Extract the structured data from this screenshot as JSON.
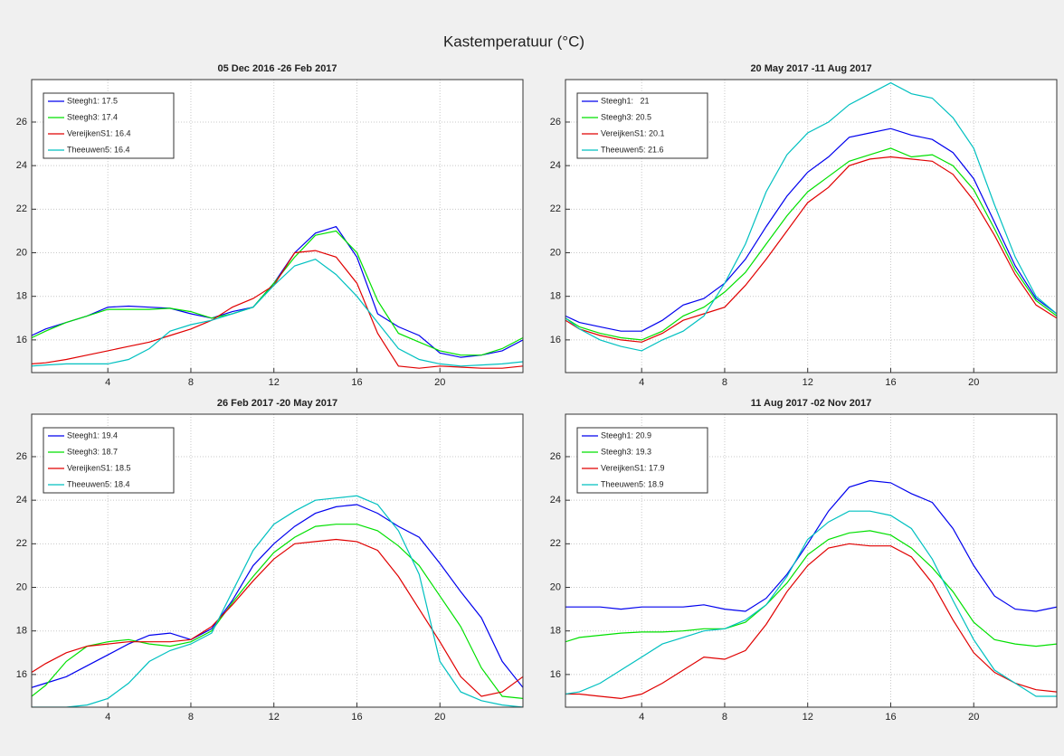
{
  "title": "Kastemperatuur (°C)",
  "chart_data": [
    {
      "type": "line",
      "title": "05 Dec 2016 -26 Feb 2017",
      "x": [
        0.33,
        1,
        2,
        3,
        4,
        5,
        6,
        7,
        8,
        9,
        10,
        11,
        12,
        13,
        14,
        15,
        16,
        17,
        18,
        19,
        20,
        21,
        22,
        23,
        24
      ],
      "xlim": [
        0.33,
        24
      ],
      "xticks": [
        4,
        8,
        12,
        16,
        20
      ],
      "ylim": [
        14.5,
        27.95
      ],
      "yticks": [
        16,
        18,
        20,
        22,
        24,
        26
      ],
      "grid": true,
      "legend": "upper left",
      "series": [
        {
          "name": "Steegh1: 17.5",
          "color": "#0000ee",
          "values": [
            16.2,
            16.5,
            16.8,
            17.1,
            17.5,
            17.55,
            17.5,
            17.45,
            17.2,
            17.0,
            17.3,
            17.5,
            18.6,
            20.0,
            20.9,
            21.2,
            19.8,
            17.2,
            16.6,
            16.2,
            15.4,
            15.2,
            15.3,
            15.5,
            16.0
          ]
        },
        {
          "name": "Steegh3: 17.4",
          "color": "#00e000",
          "values": [
            16.1,
            16.4,
            16.8,
            17.1,
            17.4,
            17.4,
            17.4,
            17.45,
            17.3,
            17.0,
            17.2,
            17.5,
            18.6,
            19.8,
            20.8,
            21.0,
            20.0,
            17.8,
            16.3,
            15.9,
            15.5,
            15.3,
            15.3,
            15.6,
            16.1
          ]
        },
        {
          "name": "VereijkenS1: 16.4",
          "color": "#e00000",
          "values": [
            14.9,
            14.95,
            15.1,
            15.3,
            15.5,
            15.7,
            15.9,
            16.2,
            16.5,
            16.9,
            17.5,
            17.9,
            18.5,
            20.0,
            20.1,
            19.8,
            18.6,
            16.3,
            14.8,
            14.7,
            14.8,
            14.75,
            14.7,
            14.7,
            14.8
          ]
        },
        {
          "name": "Theeuwen5: 16.4",
          "color": "#00c0c0",
          "values": [
            14.8,
            14.85,
            14.9,
            14.9,
            14.9,
            15.1,
            15.6,
            16.4,
            16.7,
            16.9,
            17.2,
            17.5,
            18.5,
            19.4,
            19.7,
            19.0,
            18.0,
            16.8,
            15.6,
            15.1,
            14.9,
            14.8,
            14.85,
            14.9,
            15.0
          ]
        }
      ]
    },
    {
      "type": "line",
      "title": "20 May 2017 -11 Aug 2017",
      "x": [
        0.33,
        1,
        2,
        3,
        4,
        5,
        6,
        7,
        8,
        9,
        10,
        11,
        12,
        13,
        14,
        15,
        16,
        17,
        18,
        19,
        20,
        21,
        22,
        23,
        24
      ],
      "xlim": [
        0.33,
        24
      ],
      "xticks": [
        4,
        8,
        12,
        16,
        20
      ],
      "ylim": [
        14.5,
        27.95
      ],
      "yticks": [
        16,
        18,
        20,
        22,
        24,
        26
      ],
      "grid": true,
      "legend": "upper left",
      "series": [
        {
          "name": "Steegh1:   21",
          "color": "#0000ee",
          "values": [
            17.1,
            16.8,
            16.6,
            16.4,
            16.4,
            16.9,
            17.6,
            17.9,
            18.6,
            19.7,
            21.2,
            22.6,
            23.7,
            24.4,
            25.3,
            25.5,
            25.7,
            25.4,
            25.2,
            24.6,
            23.4,
            21.4,
            19.4,
            17.9,
            17.2
          ]
        },
        {
          "name": "Steegh3: 20.5",
          "color": "#00e000",
          "values": [
            17.0,
            16.6,
            16.3,
            16.1,
            16.0,
            16.4,
            17.1,
            17.5,
            18.2,
            19.1,
            20.4,
            21.7,
            22.8,
            23.5,
            24.2,
            24.5,
            24.8,
            24.4,
            24.5,
            24.0,
            22.9,
            21.1,
            19.2,
            17.8,
            17.1
          ]
        },
        {
          "name": "VereijkenS1: 20.1",
          "color": "#e00000",
          "values": [
            16.9,
            16.5,
            16.2,
            16.0,
            15.9,
            16.3,
            16.9,
            17.2,
            17.5,
            18.5,
            19.7,
            21.0,
            22.3,
            23.0,
            24.0,
            24.3,
            24.4,
            24.3,
            24.2,
            23.6,
            22.4,
            20.8,
            19.0,
            17.6,
            17.0
          ]
        },
        {
          "name": "Theeuwen5: 21.6",
          "color": "#00c0c0",
          "values": [
            17.0,
            16.5,
            16.0,
            15.7,
            15.5,
            16.0,
            16.4,
            17.1,
            18.6,
            20.4,
            22.8,
            24.5,
            25.5,
            26.0,
            26.8,
            27.3,
            27.8,
            27.3,
            27.1,
            26.2,
            24.8,
            22.2,
            19.8,
            18.0,
            17.2
          ]
        }
      ]
    },
    {
      "type": "line",
      "title": "26 Feb 2017 -20 May 2017",
      "x": [
        0.33,
        1,
        2,
        3,
        4,
        5,
        6,
        7,
        8,
        9,
        10,
        11,
        12,
        13,
        14,
        15,
        16,
        17,
        18,
        19,
        20,
        21,
        22,
        23,
        24
      ],
      "xlim": [
        0.33,
        24
      ],
      "xticks": [
        4,
        8,
        12,
        16,
        20
      ],
      "ylim": [
        14.5,
        27.95
      ],
      "yticks": [
        16,
        18,
        20,
        22,
        24,
        26
      ],
      "grid": true,
      "legend": "upper left",
      "series": [
        {
          "name": "Steegh1: 19.4",
          "color": "#0000ee",
          "values": [
            15.4,
            15.6,
            15.9,
            16.4,
            16.9,
            17.4,
            17.8,
            17.9,
            17.6,
            18.1,
            19.4,
            21.0,
            22.0,
            22.8,
            23.4,
            23.7,
            23.8,
            23.4,
            22.8,
            22.3,
            21.1,
            19.8,
            18.6,
            16.6,
            15.4
          ]
        },
        {
          "name": "Steegh3: 18.7",
          "color": "#00e000",
          "values": [
            15.0,
            15.5,
            16.6,
            17.3,
            17.5,
            17.6,
            17.4,
            17.3,
            17.5,
            18.0,
            19.3,
            20.5,
            21.6,
            22.3,
            22.8,
            22.9,
            22.9,
            22.6,
            21.9,
            21.0,
            19.6,
            18.2,
            16.3,
            15.0,
            14.9
          ]
        },
        {
          "name": "VereijkenS1: 18.5",
          "color": "#e00000",
          "values": [
            16.1,
            16.5,
            17.0,
            17.3,
            17.4,
            17.5,
            17.5,
            17.5,
            17.6,
            18.2,
            19.2,
            20.3,
            21.3,
            22.0,
            22.1,
            22.2,
            22.1,
            21.7,
            20.5,
            19.0,
            17.5,
            15.9,
            15.0,
            15.2,
            15.9
          ]
        },
        {
          "name": "Theeuwen5: 18.4",
          "color": "#00c0c0",
          "values": [
            14.5,
            14.5,
            14.5,
            14.6,
            14.9,
            15.6,
            16.6,
            17.1,
            17.4,
            17.9,
            19.8,
            21.7,
            22.9,
            23.5,
            24.0,
            24.1,
            24.2,
            23.8,
            22.6,
            20.6,
            16.6,
            15.2,
            14.8,
            14.6,
            14.5
          ]
        }
      ]
    },
    {
      "type": "line",
      "title": "11 Aug 2017 -02 Nov 2017",
      "x": [
        0.33,
        1,
        2,
        3,
        4,
        5,
        6,
        7,
        8,
        9,
        10,
        11,
        12,
        13,
        14,
        15,
        16,
        17,
        18,
        19,
        20,
        21,
        22,
        23,
        24
      ],
      "xlim": [
        0.33,
        24
      ],
      "xticks": [
        4,
        8,
        12,
        16,
        20
      ],
      "ylim": [
        14.5,
        27.95
      ],
      "yticks": [
        16,
        18,
        20,
        22,
        24,
        26
      ],
      "grid": true,
      "legend": "upper left",
      "series": [
        {
          "name": "Steegh1: 20.9",
          "color": "#0000ee",
          "values": [
            19.1,
            19.1,
            19.1,
            19.0,
            19.1,
            19.1,
            19.1,
            19.2,
            19.0,
            18.9,
            19.5,
            20.6,
            22.0,
            23.5,
            24.6,
            24.9,
            24.8,
            24.3,
            23.9,
            22.7,
            21.0,
            19.6,
            19.0,
            18.9,
            19.1
          ]
        },
        {
          "name": "Steegh3: 19.3",
          "color": "#00e000",
          "values": [
            17.5,
            17.7,
            17.8,
            17.9,
            17.95,
            17.95,
            18.0,
            18.1,
            18.1,
            18.4,
            19.2,
            20.2,
            21.5,
            22.2,
            22.5,
            22.6,
            22.4,
            21.8,
            20.9,
            19.8,
            18.4,
            17.6,
            17.4,
            17.3,
            17.4
          ]
        },
        {
          "name": "VereijkenS1: 17.9",
          "color": "#e00000",
          "values": [
            15.1,
            15.1,
            15.0,
            14.9,
            15.1,
            15.6,
            16.2,
            16.8,
            16.7,
            17.1,
            18.3,
            19.8,
            21.0,
            21.8,
            22.0,
            21.9,
            21.9,
            21.4,
            20.2,
            18.5,
            17.0,
            16.1,
            15.6,
            15.3,
            15.2
          ]
        },
        {
          "name": "Theeuwen5: 18.9",
          "color": "#00c0c0",
          "values": [
            15.1,
            15.2,
            15.6,
            16.2,
            16.8,
            17.4,
            17.7,
            18.0,
            18.1,
            18.5,
            19.2,
            20.5,
            22.2,
            23.0,
            23.5,
            23.5,
            23.3,
            22.7,
            21.3,
            19.4,
            17.6,
            16.2,
            15.6,
            15.0,
            15.0
          ]
        }
      ]
    }
  ]
}
